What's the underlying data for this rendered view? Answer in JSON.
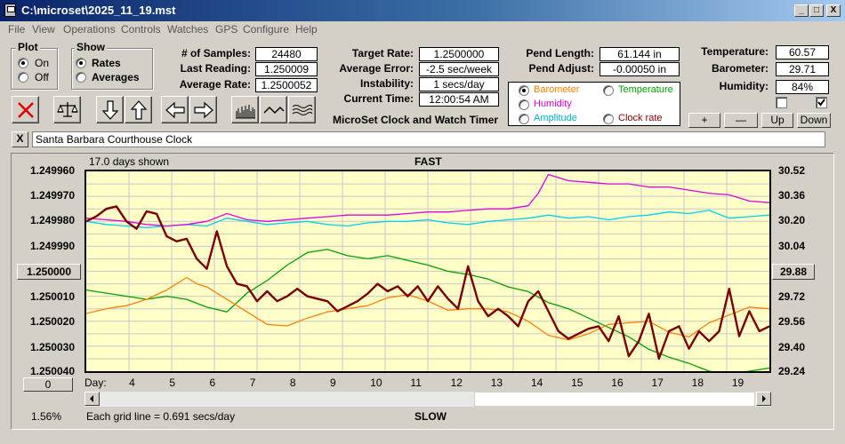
{
  "window": {
    "title": "C:\\microset\\2025_11_19.mst",
    "min": "_",
    "max": "□",
    "close": "X"
  },
  "menu": [
    "File",
    "View",
    "Operations",
    "Controls",
    "Watches",
    "GPS",
    "Configure",
    "Help"
  ],
  "plot_group": {
    "title": "Plot",
    "options": [
      "On",
      "Off"
    ],
    "selected": 0
  },
  "show_group": {
    "title": "Show",
    "options": [
      "Rates",
      "Averages"
    ],
    "selected": 0
  },
  "stats": [
    {
      "label": "# of Samples:",
      "value": "24480"
    },
    {
      "label": "Last Reading:",
      "value": "1.250009"
    },
    {
      "label": "Average Rate:",
      "value": "1.2500052"
    }
  ],
  "rates": [
    {
      "label": "Target Rate:",
      "value": "1.2500000"
    },
    {
      "label": "Average Error:",
      "value": "-2.5 sec/week"
    },
    {
      "label": "Instability:",
      "value": "1 secs/day"
    },
    {
      "label": "Current Time:",
      "value": "12:00:54 AM"
    }
  ],
  "pendulum": [
    {
      "label": "Pend Length:",
      "value": "61.144 in"
    },
    {
      "label": "Pend Adjust:",
      "value": "-0.00050 in"
    }
  ],
  "environment": [
    {
      "label": "Temperature:",
      "value": "60.57"
    },
    {
      "label": "Barometer:",
      "value": "29.71"
    },
    {
      "label": "Humidity:",
      "value": "84%"
    }
  ],
  "product_title": "MicroSet Clock and Watch Timer",
  "series_selector": {
    "options": [
      {
        "label": "Barometer",
        "color": "#ff8000",
        "selected": true
      },
      {
        "label": "Temperature",
        "color": "#00a000",
        "selected": false
      },
      {
        "label": "Humidity",
        "color": "#e000e0",
        "selected": false
      },
      {
        "label": "Clock rate",
        "color": "#800000",
        "selected": false
      },
      {
        "label": "Amplitude",
        "color": "#00b0d0",
        "selected": false
      }
    ]
  },
  "scale_buttons": {
    "plus": "+",
    "minus": "—",
    "up": "Up",
    "down": "Down"
  },
  "checkboxes": {
    "left": false,
    "right": true
  },
  "clock_name": "Santa Barbara Courthouse Clock",
  "close_label": "X",
  "toolbar_icons": [
    "delete-icon",
    "balance-scale-icon",
    "arrow-down-icon",
    "arrow-up-icon",
    "arrow-left-icon",
    "arrow-right-icon",
    "bar-plot-icon",
    "wave-plot-icon",
    "multi-wave-icon"
  ],
  "chart": {
    "days_shown": "17.0 days shown",
    "top_label": "FAST",
    "bottom_label": "SLOW",
    "left_ticks": [
      "1.249960",
      "1.249970",
      "1.249980",
      "1.249990",
      "1.250000",
      "1.250010",
      "1.250020",
      "1.250030",
      "1.250040"
    ],
    "left_center": "1.250000",
    "right_ticks": [
      "30.52",
      "30.36",
      "30.20",
      "30.04",
      "29.88",
      "29.72",
      "29.56",
      "29.40",
      "29.24"
    ],
    "right_center": "29.88",
    "x_label": "Day:",
    "days": [
      "4",
      "5",
      "6",
      "7",
      "8",
      "9",
      "10",
      "11",
      "12",
      "13",
      "14",
      "15",
      "16",
      "17",
      "18",
      "19"
    ],
    "zero_button": "0",
    "percent": "1.56%",
    "grid_note": "Each grid line = 0.691 secs/day"
  },
  "chart_data": {
    "type": "line",
    "x_range": [
      3.0,
      20.0
    ],
    "left_axis": {
      "ylim": [
        1.24996,
        1.25004
      ],
      "inverted": true
    },
    "right_axis": {
      "ylim": [
        29.24,
        30.52
      ]
    },
    "series": [
      {
        "name": "Clock rate",
        "axis": "left",
        "color": "#7a0000",
        "width": 2.4,
        "x": [
          3.0,
          3.25,
          3.5,
          3.75,
          4.0,
          4.25,
          4.5,
          4.75,
          5.0,
          5.25,
          5.5,
          5.75,
          6.0,
          6.25,
          6.5,
          6.75,
          7.0,
          7.25,
          7.5,
          7.75,
          8.0,
          8.25,
          8.5,
          8.75,
          9.0,
          9.25,
          9.5,
          9.75,
          10.0,
          10.25,
          10.5,
          10.75,
          11.0,
          11.25,
          11.5,
          11.75,
          12.0,
          12.25,
          12.5,
          12.75,
          13.0,
          13.25,
          13.5,
          13.75,
          14.0,
          14.25,
          14.5,
          14.75,
          15.0,
          15.25,
          15.5,
          15.75,
          16.0,
          16.25,
          16.5,
          16.75,
          17.0,
          17.25,
          17.5,
          17.75,
          18.0,
          18.25,
          18.5,
          18.75,
          19.0,
          19.25,
          19.5,
          19.75,
          20.0
        ],
        "y": [
          1.24998,
          1.249978,
          1.249975,
          1.249974,
          1.24998,
          1.249983,
          1.249976,
          1.249977,
          1.249986,
          1.249988,
          1.249987,
          1.249995,
          1.249999,
          1.249984,
          1.249998,
          1.250005,
          1.250006,
          1.250012,
          1.250008,
          1.250012,
          1.25001,
          1.250007,
          1.25001,
          1.250011,
          1.250012,
          1.250016,
          1.250014,
          1.250012,
          1.250009,
          1.250005,
          1.250008,
          1.250006,
          1.25001,
          1.250006,
          1.250012,
          1.250006,
          1.250011,
          1.250015,
          1.249998,
          1.250012,
          1.250018,
          1.250015,
          1.250018,
          1.250022,
          1.250012,
          1.250008,
          1.250016,
          1.250024,
          1.250027,
          1.250025,
          1.250023,
          1.250022,
          1.250028,
          1.250018,
          1.250034,
          1.250028,
          1.250017,
          1.250035,
          1.250024,
          1.250022,
          1.250031,
          1.250024,
          1.250028,
          1.250024,
          1.250007,
          1.250026,
          1.250016,
          1.250024,
          1.250022
        ]
      },
      {
        "name": "Barometer",
        "axis": "right",
        "color": "#ff8000",
        "width": 1.3,
        "x": [
          3.0,
          3.5,
          4.0,
          4.5,
          5.0,
          5.5,
          5.75,
          6.0,
          6.5,
          7.0,
          7.5,
          8.0,
          8.5,
          9.0,
          9.5,
          10.0,
          10.5,
          11.0,
          11.5,
          12.0,
          12.5,
          13.0,
          13.5,
          14.0,
          14.5,
          15.0,
          15.5,
          16.0,
          16.5,
          17.0,
          17.5,
          18.0,
          18.5,
          19.0,
          19.5,
          20.0
        ],
        "y": [
          29.61,
          29.64,
          29.66,
          29.7,
          29.76,
          29.84,
          29.8,
          29.78,
          29.7,
          29.62,
          29.54,
          29.53,
          29.58,
          29.62,
          29.64,
          29.66,
          29.71,
          29.73,
          29.69,
          29.63,
          29.64,
          29.64,
          29.62,
          29.56,
          29.47,
          29.44,
          29.48,
          29.54,
          29.55,
          29.56,
          29.49,
          29.46,
          29.55,
          29.6,
          29.65,
          29.64
        ]
      },
      {
        "name": "Temperature",
        "axis": "right",
        "color": "#00a000",
        "width": 1.3,
        "x": [
          3.0,
          3.5,
          4.0,
          4.5,
          5.0,
          5.5,
          6.0,
          6.5,
          7.0,
          7.5,
          8.0,
          8.5,
          9.0,
          9.5,
          10.0,
          10.5,
          11.0,
          11.5,
          12.0,
          12.5,
          13.0,
          13.5,
          14.0,
          14.5,
          15.0,
          15.5,
          16.0,
          16.5,
          17.0,
          17.5,
          18.0,
          18.5,
          19.0,
          19.5,
          20.0
        ],
        "y": [
          29.76,
          29.74,
          29.72,
          29.7,
          29.72,
          29.7,
          29.65,
          29.62,
          29.74,
          29.82,
          29.92,
          30.0,
          30.02,
          29.98,
          29.96,
          29.98,
          29.95,
          29.92,
          29.88,
          29.86,
          29.83,
          29.78,
          29.75,
          29.68,
          29.64,
          29.58,
          29.52,
          29.46,
          29.38,
          29.33,
          29.29,
          29.24,
          29.22,
          29.24,
          29.26
        ]
      },
      {
        "name": "Humidity",
        "axis": "right",
        "color": "#e000e0",
        "width": 1.3,
        "x": [
          3.0,
          3.5,
          4.0,
          4.5,
          5.0,
          5.5,
          6.0,
          6.5,
          7.0,
          7.5,
          8.0,
          8.5,
          9.0,
          9.5,
          10.0,
          10.5,
          11.0,
          11.5,
          12.0,
          12.5,
          13.0,
          13.5,
          14.0,
          14.25,
          14.5,
          15.0,
          15.5,
          16.0,
          16.5,
          17.0,
          17.5,
          18.0,
          18.5,
          19.0,
          19.5,
          20.0
        ],
        "y": [
          30.22,
          30.21,
          30.2,
          30.18,
          30.17,
          30.18,
          30.2,
          30.25,
          30.21,
          30.2,
          30.21,
          30.22,
          30.23,
          30.24,
          30.24,
          30.24,
          30.25,
          30.26,
          30.26,
          30.27,
          30.28,
          30.28,
          30.3,
          30.38,
          30.5,
          30.46,
          30.45,
          30.44,
          30.44,
          30.42,
          30.42,
          30.4,
          30.38,
          30.37,
          30.33,
          30.32
        ]
      },
      {
        "name": "Amplitude",
        "axis": "right",
        "color": "#00d0f0",
        "width": 1.3,
        "x": [
          3.0,
          3.5,
          4.0,
          4.5,
          5.0,
          5.5,
          6.0,
          6.5,
          7.0,
          7.5,
          8.0,
          8.5,
          9.0,
          9.5,
          10.0,
          10.5,
          11.0,
          11.5,
          12.0,
          12.5,
          13.0,
          13.5,
          14.0,
          14.5,
          15.0,
          15.5,
          16.0,
          16.5,
          17.0,
          17.5,
          18.0,
          18.5,
          19.0,
          19.5,
          20.0
        ],
        "y": [
          30.2,
          30.18,
          30.17,
          30.16,
          30.17,
          30.18,
          30.17,
          30.22,
          30.2,
          30.18,
          30.19,
          30.2,
          30.18,
          30.17,
          30.19,
          30.2,
          30.2,
          30.21,
          30.19,
          30.18,
          30.2,
          30.21,
          30.22,
          30.24,
          30.22,
          30.23,
          30.21,
          30.23,
          30.24,
          30.26,
          30.25,
          30.27,
          30.22,
          30.23,
          30.24
        ]
      }
    ]
  }
}
